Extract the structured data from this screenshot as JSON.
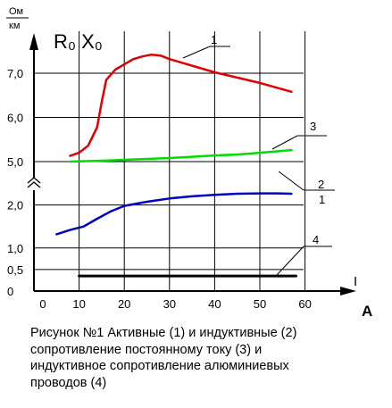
{
  "chart_data": {
    "type": "line",
    "y_unit_numerator": "Ом",
    "y_unit_denominator": "км",
    "y_symbols": "R₀ X₀",
    "x_symbol": "I",
    "x_unit": "A",
    "x_ticks": [
      "10",
      "20",
      "30",
      "40",
      "50",
      "60"
    ],
    "x_zero": "0",
    "y_ticks": [
      "0",
      "0,5",
      "1,0",
      "2,0",
      "5,0",
      "6,0",
      "7,0"
    ],
    "y_axis_break": true,
    "grid": true,
    "series": [
      {
        "name": "1",
        "color": "#e00000",
        "points": [
          [
            8,
            5.13
          ],
          [
            10,
            5.2
          ],
          [
            12,
            5.36
          ],
          [
            14,
            5.78
          ],
          [
            15,
            6.35
          ],
          [
            16,
            6.85
          ],
          [
            18,
            7.08
          ],
          [
            20,
            7.2
          ],
          [
            22,
            7.32
          ],
          [
            24,
            7.38
          ],
          [
            26,
            7.42
          ],
          [
            28,
            7.4
          ],
          [
            30,
            7.32
          ],
          [
            40,
            7.02
          ],
          [
            50,
            6.78
          ],
          [
            57,
            6.58
          ]
        ]
      },
      {
        "name": "2",
        "color": "#0000c0",
        "points": [
          [
            5,
            1.32
          ],
          [
            8,
            1.42
          ],
          [
            11,
            1.5
          ],
          [
            14,
            1.68
          ],
          [
            17,
            1.85
          ],
          [
            20,
            1.98
          ],
          [
            25,
            2.22
          ],
          [
            30,
            2.45
          ],
          [
            35,
            2.6
          ],
          [
            40,
            2.7
          ],
          [
            45,
            2.78
          ],
          [
            50,
            2.8
          ],
          [
            54,
            2.8
          ],
          [
            57,
            2.78
          ]
        ]
      },
      {
        "name": "3",
        "color": "#00dd00",
        "points": [
          [
            8,
            5.0
          ],
          [
            15,
            5.02
          ],
          [
            20,
            5.04
          ],
          [
            25,
            5.06
          ],
          [
            30,
            5.08
          ],
          [
            35,
            5.11
          ],
          [
            40,
            5.14
          ],
          [
            45,
            5.16
          ],
          [
            50,
            5.2
          ],
          [
            57,
            5.26
          ]
        ]
      },
      {
        "name": "4",
        "color": "#000000",
        "points": [
          [
            10,
            0.35
          ],
          [
            58,
            0.35
          ]
        ]
      }
    ],
    "annotations": [
      "1",
      "2",
      "1",
      "3",
      "4"
    ]
  },
  "caption": [
    "Рисунок №1 Активные (1) и индуктивные (2)",
    "сопротивление постоянному току (3) и",
    "индуктивное сопротивление алюминиевых",
    "проводов (4)"
  ]
}
